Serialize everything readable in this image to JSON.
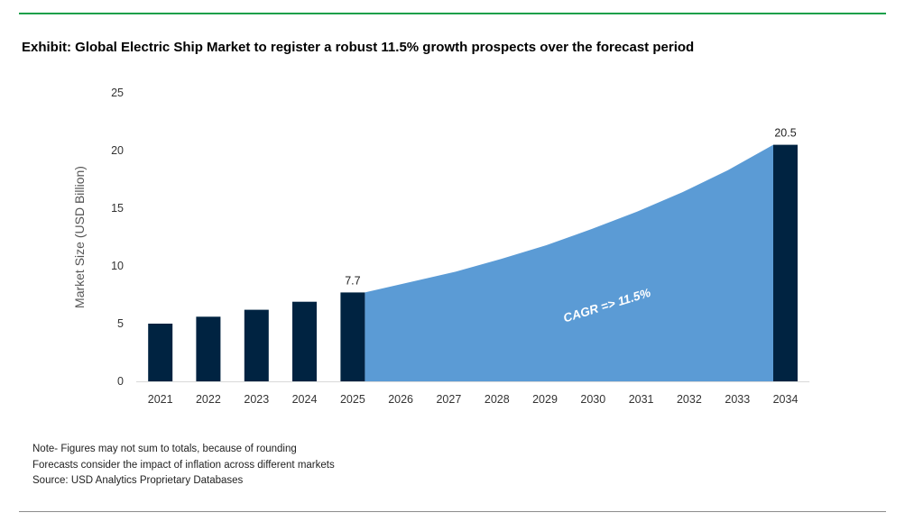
{
  "title": "Exhibit: Global Electric Ship Market to register a robust 11.5% growth prospects over the forecast period",
  "notes": [
    "Note- Figures may not sum to totals, because of rounding",
    "Forecasts consider the impact of inflation across different markets",
    "Source: USD Analytics Proprietary Databases"
  ],
  "colors": {
    "bar": "#002341",
    "area": "#5b9bd5",
    "accent_rule": "#1aa04a",
    "axis": "#d9d9d9"
  },
  "chart_data": {
    "type": "bar",
    "categories": [
      "2021",
      "2022",
      "2023",
      "2024",
      "2025",
      "2026",
      "2027",
      "2028",
      "2029",
      "2030",
      "2031",
      "2032",
      "2033",
      "2034"
    ],
    "bars": [
      {
        "x": "2021",
        "value": 5.0
      },
      {
        "x": "2022",
        "value": 5.6
      },
      {
        "x": "2023",
        "value": 6.2
      },
      {
        "x": "2024",
        "value": 6.9
      },
      {
        "x": "2025",
        "value": 7.7,
        "label": "7.7"
      },
      {
        "x": "2034",
        "value": 20.5,
        "label": "20.5"
      }
    ],
    "area": {
      "x_start": "2025",
      "x_end": "2034",
      "values": [
        7.7,
        8.6,
        9.5,
        10.6,
        11.8,
        13.2,
        14.7,
        16.4,
        18.3,
        20.5
      ]
    },
    "annotation": "CAGR => 11.5%",
    "ylabel": "Market Size (USD Billion)",
    "xlabel": "",
    "ylim": [
      0,
      25
    ],
    "yticks": [
      0,
      5,
      10,
      15,
      20,
      25
    ],
    "grid": false,
    "legend": "none"
  }
}
